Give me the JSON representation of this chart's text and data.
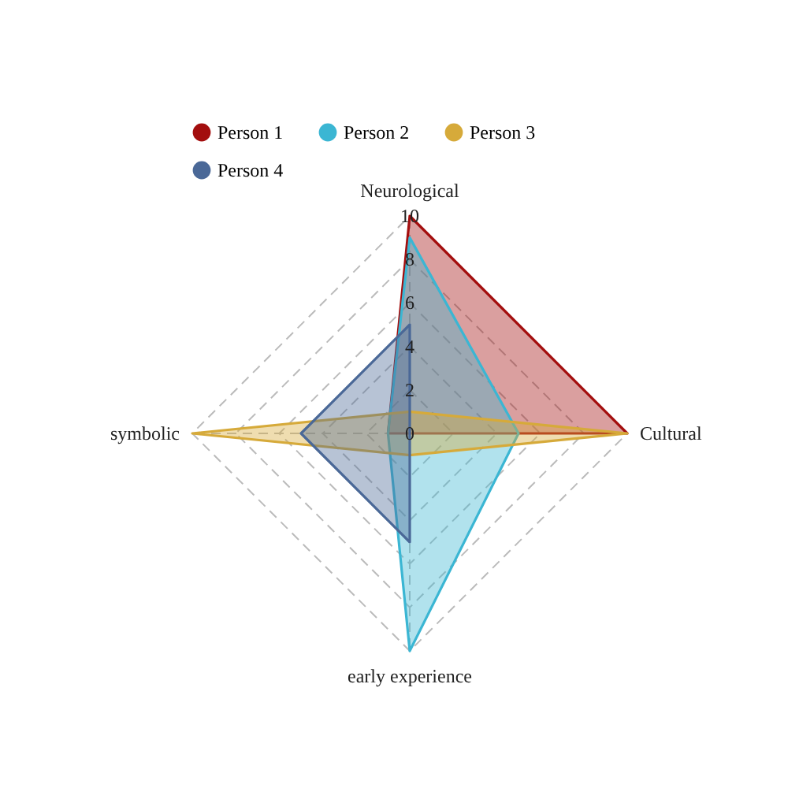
{
  "chart_data": {
    "type": "radar",
    "categories": [
      "Neurological",
      "Cultural",
      "early experience",
      "symbolic"
    ],
    "series": [
      {
        "name": "Person 1",
        "color": "#a30e0e",
        "values": [
          10,
          10,
          0,
          1
        ]
      },
      {
        "name": "Person 2",
        "color": "#3bb6d3",
        "values": [
          9,
          5,
          10,
          1
        ]
      },
      {
        "name": "Person 3",
        "color": "#d6aa3a",
        "values": [
          1,
          10,
          1,
          10
        ]
      },
      {
        "name": "Person 4",
        "color": "#4a6897",
        "values": [
          5,
          0,
          5,
          5
        ]
      }
    ],
    "ylim": [
      0,
      10
    ],
    "yticks": [
      0,
      2,
      4,
      6,
      8,
      10
    ],
    "grid": true,
    "legend": "top"
  }
}
